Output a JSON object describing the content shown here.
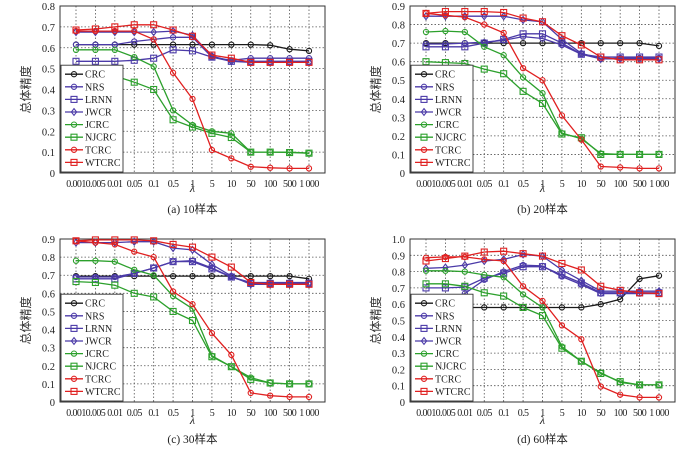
{
  "chart_data": [
    {
      "type": "line",
      "panel": "a",
      "caption": "(a) 10样本",
      "xlabel": "λ",
      "ylabel": "总体精度",
      "ylim": [
        0,
        0.8
      ],
      "yticks": [
        "0",
        "0.1",
        "0.2",
        "0.3",
        "0.4",
        "0.5",
        "0.6",
        "0.7",
        "0.8"
      ],
      "grid": true,
      "legend": "bottom-left",
      "categories": [
        "0.001",
        "0.005",
        "0.01",
        "0.05",
        "0.1",
        "0.5",
        "1",
        "5",
        "10",
        "50",
        "100",
        "500",
        "1 000"
      ],
      "series": [
        {
          "name": "CRC",
          "color": "#1a1a1a",
          "marker": "circle",
          "values": [
            0.615,
            0.615,
            0.615,
            0.615,
            0.615,
            0.615,
            0.615,
            0.615,
            0.615,
            0.615,
            0.612,
            0.593,
            0.585
          ]
        },
        {
          "name": "NRS",
          "color": "#4b3aa8",
          "marker": "circle",
          "values": [
            0.615,
            0.615,
            0.615,
            0.63,
            0.64,
            0.65,
            0.65,
            0.555,
            0.54,
            0.55,
            0.55,
            0.55,
            0.55
          ]
        },
        {
          "name": "LRNN",
          "color": "#4b3aa8",
          "marker": "square",
          "values": [
            0.535,
            0.535,
            0.535,
            0.54,
            0.55,
            0.59,
            0.585,
            0.555,
            0.535,
            0.535,
            0.535,
            0.535,
            0.535
          ]
        },
        {
          "name": "JWCR",
          "color": "#4b3aa8",
          "marker": "diamond",
          "values": [
            0.675,
            0.675,
            0.675,
            0.675,
            0.675,
            0.68,
            0.66,
            0.56,
            0.535,
            0.53,
            0.53,
            0.53,
            0.53
          ]
        },
        {
          "name": "JCRC",
          "color": "#2ca02c",
          "marker": "circle",
          "values": [
            0.59,
            0.59,
            0.59,
            0.555,
            0.51,
            0.3,
            0.23,
            0.2,
            0.19,
            0.1,
            0.1,
            0.1,
            0.095
          ]
        },
        {
          "name": "NJCRC",
          "color": "#2ca02c",
          "marker": "square",
          "values": [
            0.46,
            0.465,
            0.465,
            0.435,
            0.4,
            0.255,
            0.22,
            0.19,
            0.17,
            0.1,
            0.1,
            0.098,
            0.095
          ]
        },
        {
          "name": "TCRC",
          "color": "#e02020",
          "marker": "circle",
          "values": [
            0.68,
            0.68,
            0.68,
            0.68,
            0.64,
            0.48,
            0.355,
            0.11,
            0.07,
            0.03,
            0.025,
            0.022,
            0.022
          ]
        },
        {
          "name": "WTCRC",
          "color": "#e02020",
          "marker": "square",
          "values": [
            0.685,
            0.69,
            0.7,
            0.71,
            0.71,
            0.685,
            0.655,
            0.565,
            0.55,
            0.53,
            0.53,
            0.53,
            0.53
          ]
        }
      ]
    },
    {
      "type": "line",
      "panel": "b",
      "caption": "(b) 20样本",
      "xlabel": "λ",
      "ylabel": "总体精度",
      "ylim": [
        0,
        0.9
      ],
      "yticks": [
        "0",
        "0.1",
        "0.2",
        "0.3",
        "0.4",
        "0.5",
        "0.6",
        "0.7",
        "0.8",
        "0.9"
      ],
      "grid": true,
      "legend": "bottom-left",
      "categories": [
        "0.001",
        "0.005",
        "0.01",
        "0.05",
        "0.1",
        "0.5",
        "1",
        "5",
        "10",
        "50",
        "100",
        "500",
        "1 000"
      ],
      "series": [
        {
          "name": "CRC",
          "color": "#1a1a1a",
          "marker": "circle",
          "values": [
            0.7,
            0.7,
            0.7,
            0.7,
            0.7,
            0.7,
            0.7,
            0.7,
            0.7,
            0.7,
            0.7,
            0.7,
            0.685
          ]
        },
        {
          "name": "NRS",
          "color": "#4b3aa8",
          "marker": "circle",
          "values": [
            0.695,
            0.695,
            0.7,
            0.705,
            0.715,
            0.735,
            0.725,
            0.69,
            0.64,
            0.615,
            0.62,
            0.62,
            0.62
          ]
        },
        {
          "name": "LRNN",
          "color": "#4b3aa8",
          "marker": "square",
          "values": [
            0.68,
            0.68,
            0.68,
            0.7,
            0.72,
            0.75,
            0.75,
            0.7,
            0.64,
            0.625,
            0.625,
            0.625,
            0.625
          ]
        },
        {
          "name": "JWCR",
          "color": "#4b3aa8",
          "marker": "diamond",
          "values": [
            0.845,
            0.845,
            0.845,
            0.845,
            0.845,
            0.825,
            0.815,
            0.72,
            0.645,
            0.615,
            0.615,
            0.615,
            0.615
          ]
        },
        {
          "name": "JCRC",
          "color": "#2ca02c",
          "marker": "circle",
          "values": [
            0.76,
            0.765,
            0.76,
            0.68,
            0.635,
            0.515,
            0.43,
            0.215,
            0.185,
            0.105,
            0.1,
            0.1,
            0.1
          ]
        },
        {
          "name": "NJCRC",
          "color": "#2ca02c",
          "marker": "square",
          "values": [
            0.6,
            0.595,
            0.59,
            0.56,
            0.535,
            0.44,
            0.375,
            0.21,
            0.19,
            0.1,
            0.1,
            0.1,
            0.1
          ]
        },
        {
          "name": "TCRC",
          "color": "#e02020",
          "marker": "circle",
          "values": [
            0.86,
            0.85,
            0.84,
            0.8,
            0.755,
            0.565,
            0.5,
            0.31,
            0.18,
            0.035,
            0.03,
            0.025,
            0.025
          ]
        },
        {
          "name": "WTCRC",
          "color": "#e02020",
          "marker": "square",
          "values": [
            0.86,
            0.87,
            0.87,
            0.87,
            0.865,
            0.835,
            0.815,
            0.74,
            0.69,
            0.625,
            0.61,
            0.61,
            0.61
          ]
        }
      ]
    },
    {
      "type": "line",
      "panel": "c",
      "caption": "(c) 30样本",
      "xlabel": "λ",
      "ylabel": "总体精度",
      "ylim": [
        0,
        0.9
      ],
      "yticks": [
        "0",
        "0.1",
        "0.2",
        "0.3",
        "0.4",
        "0.5",
        "0.6",
        "0.7",
        "0.8",
        "0.9"
      ],
      "grid": true,
      "legend": "bottom-left",
      "categories": [
        "0.001",
        "0.005",
        "0.01",
        "0.05",
        "0.1",
        "0.5",
        "1",
        "5",
        "10",
        "50",
        "100",
        "500",
        "1 000"
      ],
      "series": [
        {
          "name": "CRC",
          "color": "#1a1a1a",
          "marker": "circle",
          "values": [
            0.695,
            0.695,
            0.695,
            0.695,
            0.695,
            0.695,
            0.695,
            0.695,
            0.695,
            0.695,
            0.695,
            0.695,
            0.68
          ]
        },
        {
          "name": "NRS",
          "color": "#4b3aa8",
          "marker": "circle",
          "values": [
            0.69,
            0.69,
            0.69,
            0.71,
            0.74,
            0.775,
            0.78,
            0.74,
            0.69,
            0.66,
            0.66,
            0.66,
            0.66
          ]
        },
        {
          "name": "LRNN",
          "color": "#4b3aa8",
          "marker": "square",
          "values": [
            0.68,
            0.68,
            0.68,
            0.71,
            0.74,
            0.775,
            0.775,
            0.735,
            0.69,
            0.655,
            0.655,
            0.655,
            0.655
          ]
        },
        {
          "name": "JWCR",
          "color": "#4b3aa8",
          "marker": "diamond",
          "values": [
            0.88,
            0.88,
            0.88,
            0.885,
            0.885,
            0.85,
            0.84,
            0.76,
            0.695,
            0.65,
            0.65,
            0.65,
            0.65
          ]
        },
        {
          "name": "JCRC",
          "color": "#2ca02c",
          "marker": "circle",
          "values": [
            0.78,
            0.78,
            0.775,
            0.73,
            0.7,
            0.585,
            0.515,
            0.255,
            0.195,
            0.135,
            0.105,
            0.1,
            0.1
          ]
        },
        {
          "name": "NJCRC",
          "color": "#2ca02c",
          "marker": "square",
          "values": [
            0.665,
            0.66,
            0.645,
            0.6,
            0.58,
            0.5,
            0.45,
            0.25,
            0.195,
            0.125,
            0.105,
            0.1,
            0.1
          ]
        },
        {
          "name": "TCRC",
          "color": "#e02020",
          "marker": "circle",
          "values": [
            0.89,
            0.88,
            0.87,
            0.83,
            0.8,
            0.61,
            0.54,
            0.38,
            0.26,
            0.05,
            0.035,
            0.028,
            0.028
          ]
        },
        {
          "name": "WTCRC",
          "color": "#e02020",
          "marker": "square",
          "values": [
            0.89,
            0.895,
            0.895,
            0.895,
            0.89,
            0.87,
            0.855,
            0.8,
            0.745,
            0.66,
            0.65,
            0.65,
            0.65
          ]
        }
      ]
    },
    {
      "type": "line",
      "panel": "d",
      "caption": "(d) 60样本",
      "xlabel": "λ",
      "ylabel": "总体精度",
      "ylim": [
        0,
        1.0
      ],
      "yticks": [
        "0",
        "0.1",
        "0.2",
        "0.3",
        "0.4",
        "0.5",
        "0.6",
        "0.7",
        "0.8",
        "0.9",
        "1.0"
      ],
      "grid": true,
      "legend": "bottom-left",
      "categories": [
        "0.001",
        "0.005",
        "0.01",
        "0.05",
        "0.1",
        "0.5",
        "1",
        "5",
        "10",
        "50",
        "100",
        "500",
        "1 000"
      ],
      "series": [
        {
          "name": "CRC",
          "color": "#1a1a1a",
          "marker": "circle",
          "values": [
            0.58,
            0.58,
            0.58,
            0.58,
            0.58,
            0.58,
            0.58,
            0.58,
            0.58,
            0.6,
            0.63,
            0.755,
            0.775
          ]
        },
        {
          "name": "NRS",
          "color": "#4b3aa8",
          "marker": "circle",
          "values": [
            0.58,
            0.62,
            0.665,
            0.75,
            0.8,
            0.84,
            0.835,
            0.77,
            0.72,
            0.665,
            0.665,
            0.665,
            0.665
          ]
        },
        {
          "name": "LRNN",
          "color": "#4b3aa8",
          "marker": "square",
          "values": [
            0.7,
            0.7,
            0.705,
            0.76,
            0.79,
            0.83,
            0.83,
            0.78,
            0.73,
            0.67,
            0.67,
            0.67,
            0.67
          ]
        },
        {
          "name": "JWCR",
          "color": "#4b3aa8",
          "marker": "diamond",
          "values": [
            0.82,
            0.825,
            0.84,
            0.865,
            0.875,
            0.905,
            0.895,
            0.81,
            0.745,
            0.68,
            0.68,
            0.68,
            0.68
          ]
        },
        {
          "name": "JCRC",
          "color": "#2ca02c",
          "marker": "circle",
          "values": [
            0.805,
            0.805,
            0.8,
            0.78,
            0.765,
            0.66,
            0.58,
            0.34,
            0.25,
            0.18,
            0.12,
            0.105,
            0.105
          ]
        },
        {
          "name": "NJCRC",
          "color": "#2ca02c",
          "marker": "square",
          "values": [
            0.725,
            0.725,
            0.71,
            0.67,
            0.65,
            0.58,
            0.53,
            0.33,
            0.25,
            0.175,
            0.125,
            0.105,
            0.105
          ]
        },
        {
          "name": "TCRC",
          "color": "#e02020",
          "marker": "circle",
          "values": [
            0.885,
            0.89,
            0.89,
            0.875,
            0.865,
            0.71,
            0.62,
            0.47,
            0.385,
            0.095,
            0.045,
            0.028,
            0.028
          ]
        },
        {
          "name": "WTCRC",
          "color": "#e02020",
          "marker": "square",
          "values": [
            0.865,
            0.88,
            0.895,
            0.92,
            0.925,
            0.91,
            0.895,
            0.85,
            0.81,
            0.71,
            0.685,
            0.67,
            0.665
          ]
        }
      ]
    }
  ]
}
